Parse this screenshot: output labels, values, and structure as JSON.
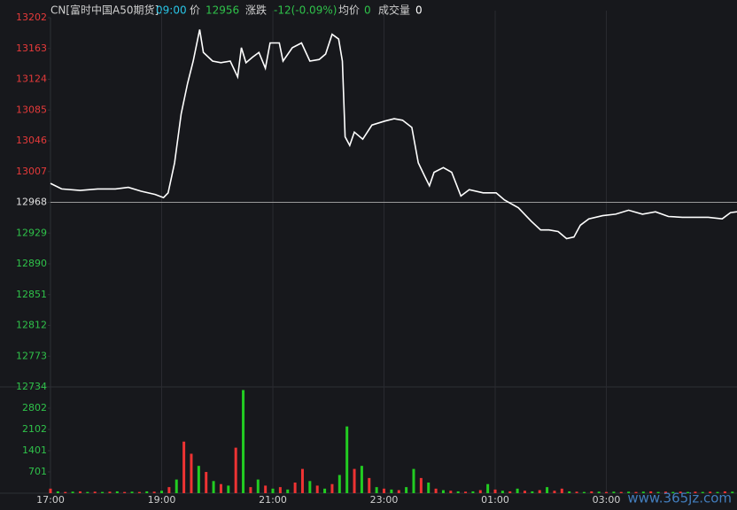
{
  "chart_data": {
    "type": "line",
    "title": "CN[富时中国A50期货]",
    "time": "09:00",
    "quote": [
      {
        "label": "价",
        "value": 12956,
        "color": "#2fc24a"
      },
      {
        "label": "涨跌",
        "value": "-12(-0.09%)",
        "color": "#2fc24a"
      },
      {
        "label": "均价",
        "value": 0,
        "color": "#2fc24a"
      },
      {
        "label": "成交量",
        "value": 0,
        "color": "#ffffff"
      }
    ],
    "x": [
      0,
      12,
      32,
      51,
      70,
      84,
      98,
      113,
      122,
      127,
      134,
      141,
      148,
      154,
      161,
      165,
      175,
      184,
      194,
      202,
      206,
      211,
      218,
      225,
      232,
      237,
      247,
      251,
      261,
      271,
      280,
      290,
      297,
      304,
      311,
      315,
      318,
      323,
      328,
      337,
      347,
      361,
      371,
      380,
      390,
      397,
      404,
      409,
      414,
      424,
      433,
      443,
      452,
      467,
      481,
      490,
      505,
      519,
      529,
      538,
      548,
      557,
      565,
      572,
      581,
      596,
      610,
      624,
      639,
      653,
      667,
      682,
      696,
      710,
      725,
      734,
      741
    ],
    "series": [
      {
        "color": "#ffffff",
        "values": [
          12992,
          12985,
          12983,
          12985,
          12985,
          12987,
          12982,
          12978,
          12974,
          12980,
          13018,
          13080,
          13119,
          13147,
          13187,
          13158,
          13147,
          13145,
          13147,
          13127,
          13164,
          13145,
          13152,
          13158,
          13138,
          13170,
          13170,
          13147,
          13164,
          13170,
          13147,
          13149,
          13156,
          13181,
          13175,
          13147,
          13051,
          13040,
          13057,
          13048,
          13066,
          13071,
          13074,
          13072,
          13063,
          13018,
          13001,
          12989,
          13006,
          13012,
          13006,
          12976,
          12984,
          12980,
          12980,
          12971,
          12961,
          12944,
          12933,
          12933,
          12931,
          12922,
          12924,
          12939,
          12947,
          12951,
          12953,
          12958,
          12953,
          12956,
          12950,
          12949,
          12949,
          12949,
          12947,
          12955,
          12956
        ]
      }
    ],
    "xlim": [
      0,
      741
    ],
    "xticks": [
      {
        "value": 0,
        "label": "17:00"
      },
      {
        "value": 120,
        "label": "19:00"
      },
      {
        "value": 240,
        "label": "21:00"
      },
      {
        "value": 360,
        "label": "23:00"
      },
      {
        "value": 480,
        "label": "01:00"
      },
      {
        "value": 600,
        "label": "03:00"
      }
    ],
    "ylim": [
      12734,
      13202
    ],
    "yticks": [
      13202,
      13163,
      13124,
      13085,
      13046,
      13007,
      12968,
      12929,
      12890,
      12851,
      12812,
      12773,
      12734
    ],
    "reference": 12968,
    "volume": {
      "type": "bar",
      "x": [
        0,
        8,
        16,
        24,
        32,
        40,
        48,
        56,
        64,
        72,
        80,
        88,
        96,
        104,
        112,
        120,
        128,
        136,
        144,
        152,
        160,
        168,
        176,
        184,
        192,
        200,
        208,
        216,
        224,
        232,
        240,
        248,
        256,
        264,
        272,
        280,
        288,
        296,
        304,
        312,
        320,
        328,
        336,
        344,
        352,
        360,
        368,
        376,
        384,
        392,
        400,
        408,
        416,
        424,
        432,
        440,
        448,
        456,
        464,
        472,
        480,
        488,
        496,
        504,
        512,
        520,
        528,
        536,
        544,
        552,
        560,
        568,
        576,
        584,
        592,
        600,
        608,
        616,
        624,
        632,
        640,
        648,
        656,
        664,
        672,
        680,
        688,
        696,
        704,
        712,
        720,
        728,
        736
      ],
      "values": [
        150,
        60,
        40,
        50,
        60,
        40,
        50,
        40,
        50,
        60,
        40,
        50,
        40,
        60,
        50,
        80,
        200,
        450,
        1700,
        1300,
        900,
        700,
        400,
        300,
        250,
        1500,
        3400,
        200,
        450,
        250,
        150,
        200,
        120,
        350,
        800,
        400,
        250,
        150,
        300,
        600,
        2200,
        800,
        900,
        500,
        200,
        150,
        120,
        100,
        200,
        800,
        500,
        350,
        150,
        100,
        80,
        60,
        50,
        60,
        100,
        300,
        120,
        80,
        60,
        150,
        80,
        60,
        100,
        200,
        80,
        150,
        60,
        50,
        40,
        60,
        50,
        40,
        50,
        40,
        50,
        40,
        50,
        60,
        40,
        50,
        40,
        50,
        40,
        50,
        40,
        50,
        40,
        60,
        50
      ],
      "colors": [
        "#e33",
        "#2c2",
        "#e33",
        "#2c2",
        "#e33",
        "#2c2",
        "#e33",
        "#2c2",
        "#e33",
        "#2c2",
        "#e33",
        "#2c2",
        "#e33",
        "#2c2",
        "#e33",
        "#2c2",
        "#e33",
        "#2c2",
        "#e33",
        "#e33",
        "#2c2",
        "#e33",
        "#2c2",
        "#e33",
        "#2c2",
        "#e33",
        "#2c2",
        "#e33",
        "#2c2",
        "#e33",
        "#2c2",
        "#e33",
        "#2c2",
        "#e33",
        "#e33",
        "#2c2",
        "#e33",
        "#2c2",
        "#e33",
        "#2c2",
        "#2c2",
        "#e33",
        "#2c2",
        "#e33",
        "#2c2",
        "#e33",
        "#2c2",
        "#e33",
        "#2c2",
        "#2c2",
        "#e33",
        "#2c2",
        "#e33",
        "#2c2",
        "#e33",
        "#2c2",
        "#e33",
        "#2c2",
        "#e33",
        "#2c2",
        "#e33",
        "#2c2",
        "#e33",
        "#2c2",
        "#e33",
        "#2c2",
        "#e33",
        "#2c2",
        "#e33",
        "#e33",
        "#2c2",
        "#e33",
        "#2c2",
        "#e33",
        "#2c2",
        "#e33",
        "#2c2",
        "#e33",
        "#2c2",
        "#e33",
        "#2c2",
        "#e33",
        "#2c2",
        "#e33",
        "#2c2",
        "#e33",
        "#2c2",
        "#e33",
        "#2c2",
        "#e33",
        "#2c2",
        "#e33",
        "#2c2"
      ],
      "ylim": [
        0,
        3503
      ],
      "yticks": [
        701,
        1401,
        2102,
        2802
      ]
    },
    "watermark": "www.365jz.com"
  }
}
